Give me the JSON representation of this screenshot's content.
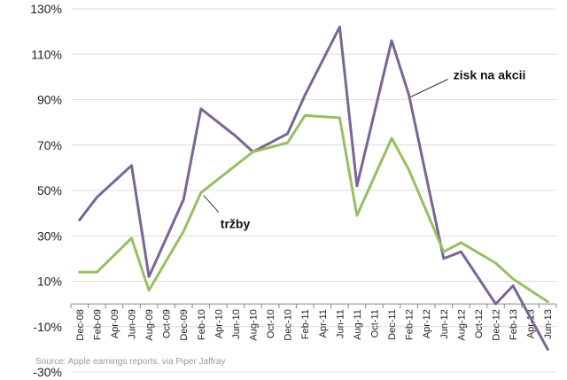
{
  "chart_data": {
    "type": "line",
    "categories": [
      "Dec-08",
      "Feb-09",
      "Apr-09",
      "Jun-09",
      "Aug-09",
      "Oct-09",
      "Dec-09",
      "Feb-10",
      "Apr-10",
      "Jun-10",
      "Aug-10",
      "Oct-10",
      "Dec-10",
      "Feb-11",
      "Apr-11",
      "Jun-11",
      "Aug-11",
      "Oct-11",
      "Dec-11",
      "Feb-12",
      "Apr-12",
      "Jun-12",
      "Aug-12",
      "Oct-12",
      "Dec-12",
      "Feb-13",
      "Apr-13",
      "Jun-13"
    ],
    "y_tick_labels": [
      "130%",
      "110%",
      "90%",
      "70%",
      "50%",
      "30%",
      "10%",
      "-10%",
      "-30%"
    ],
    "ylim": [
      -30,
      130
    ],
    "grid": "horizontal",
    "series": [
      {
        "name": "zisk na akcii",
        "color": "#7b6593",
        "x": [
          "Dec-08",
          "Feb-09",
          "Jun-09",
          "Aug-09",
          "Dec-09",
          "Feb-10",
          "Jun-10",
          "Aug-10",
          "Dec-10",
          "Feb-11",
          "Jun-11",
          "Aug-11",
          "Dec-11",
          "Feb-12",
          "Jun-12",
          "Aug-12",
          "Dec-12",
          "Feb-13",
          "Jun-13"
        ],
        "values": [
          37,
          47,
          61,
          12,
          46,
          86,
          74,
          67,
          75,
          92,
          122,
          52,
          116,
          92,
          20,
          23,
          0,
          8,
          -20
        ]
      },
      {
        "name": "tržby",
        "color": "#97bf62",
        "x": [
          "Dec-08",
          "Feb-09",
          "Jun-09",
          "Aug-09",
          "Dec-09",
          "Feb-10",
          "Jun-10",
          "Aug-10",
          "Dec-10",
          "Feb-11",
          "Jun-11",
          "Aug-11",
          "Dec-11",
          "Feb-12",
          "Jun-12",
          "Aug-12",
          "Dec-12",
          "Feb-13",
          "Jun-13"
        ],
        "values": [
          14,
          14,
          29,
          6,
          32,
          49,
          61,
          67,
          71,
          83,
          82,
          39,
          73,
          59,
          23,
          27,
          18,
          11,
          1
        ]
      }
    ],
    "annotations": [
      {
        "text": "zisk na akcii",
        "series": 0
      },
      {
        "text": "tržby",
        "series": 1
      }
    ],
    "source": "Source: Apple earnings reports, via Piper Jaffray"
  }
}
